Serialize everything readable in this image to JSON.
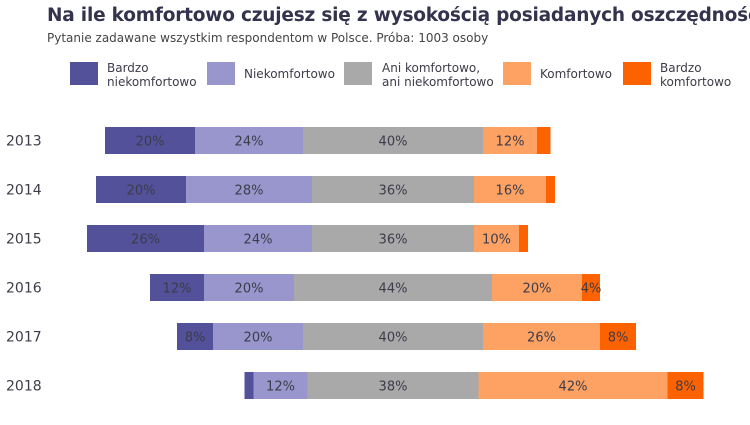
{
  "chart_data": {
    "type": "bar",
    "orientation": "horizontal",
    "stacked": true,
    "diverging": true,
    "title": "Na ile komfortowo czujesz się z wysokością posiadanych oszczędności?",
    "subtitle": "Pytanie zadawane wszystkim respondentom w Polsce. Próba: 1003 osoby",
    "legend_position": "top",
    "categories": [
      "2013",
      "2014",
      "2015",
      "2016",
      "2017",
      "2018"
    ],
    "series": [
      {
        "name": "Bardzo niekomfortowo",
        "legend_lines": [
          "Bardzo",
          "niekomfortowo"
        ],
        "color": "#525199",
        "values": [
          20,
          20,
          26,
          12,
          8,
          2
        ],
        "labels": [
          "20%",
          "20%",
          "26%",
          "12%",
          "8%",
          ""
        ]
      },
      {
        "name": "Niekomfortowo",
        "legend_lines": [
          "Niekomfortowo"
        ],
        "color": "#9896cc",
        "values": [
          24,
          28,
          24,
          20,
          20,
          12
        ],
        "labels": [
          "24%",
          "28%",
          "24%",
          "20%",
          "20%",
          "12%"
        ]
      },
      {
        "name": "Ani komfortowo, ani niekomfortowo",
        "legend_lines": [
          "Ani komfortowo,",
          "ani niekomfortowo"
        ],
        "color": "#a9a9a9",
        "values": [
          40,
          36,
          36,
          44,
          40,
          38
        ],
        "labels": [
          "40%",
          "36%",
          "36%",
          "44%",
          "40%",
          "38%"
        ]
      },
      {
        "name": "Komfortowo",
        "legend_lines": [
          "Komfortowo"
        ],
        "color": "#fda263",
        "values": [
          12,
          16,
          10,
          20,
          26,
          42
        ],
        "labels": [
          "12%",
          "16%",
          "10%",
          "20%",
          "26%",
          "42%"
        ]
      },
      {
        "name": "Bardzo komfortowo",
        "legend_lines": [
          "Bardzo",
          "komfortowo"
        ],
        "color": "#fd6200",
        "values": [
          3,
          2,
          2,
          4,
          8,
          8
        ],
        "labels": [
          "",
          "",
          "",
          "4%",
          "8%",
          "8%"
        ]
      }
    ]
  }
}
